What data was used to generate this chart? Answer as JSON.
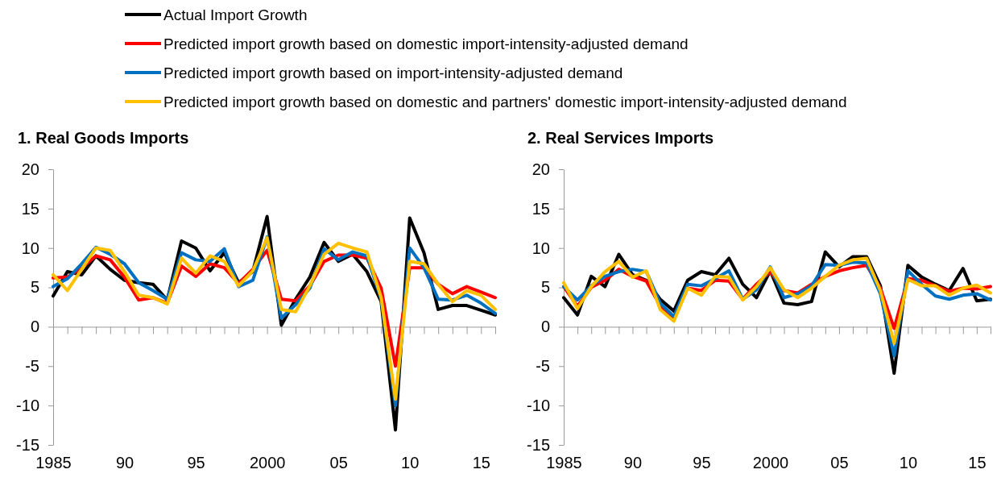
{
  "chart_data": [
    {
      "type": "line",
      "title": "1. Real Goods Imports",
      "x": [
        1985,
        1986,
        1987,
        1988,
        1989,
        1990,
        1991,
        1992,
        1993,
        1994,
        1995,
        1996,
        1997,
        1998,
        1999,
        2000,
        2001,
        2002,
        2003,
        2004,
        2005,
        2006,
        2007,
        2008,
        2009,
        2010,
        2011,
        2012,
        2013,
        2014,
        2015,
        2016
      ],
      "series": [
        {
          "name": "Actual Import Growth",
          "color": "#000000",
          "values": [
            3.9,
            7.0,
            6.6,
            9.0,
            7.3,
            5.9,
            5.6,
            5.4,
            3.4,
            10.9,
            10.0,
            7.1,
            9.4,
            5.6,
            7.0,
            14.0,
            0.2,
            3.5,
            6.3,
            10.7,
            8.3,
            9.2,
            7.0,
            3.2,
            -13.1,
            13.8,
            9.4,
            2.2,
            2.7,
            2.7,
            2.1,
            1.5
          ]
        },
        {
          "name": "Predicted import growth based on domestic import-intensity-adjusted demand",
          "color": "#ff0000",
          "values": [
            6.2,
            6.3,
            7.5,
            9.0,
            8.5,
            6.3,
            3.4,
            3.7,
            3.0,
            7.7,
            6.4,
            8.0,
            7.5,
            5.5,
            7.3,
            9.7,
            3.5,
            3.3,
            5.2,
            8.3,
            9.1,
            9.1,
            8.7,
            4.9,
            -5.0,
            7.5,
            7.5,
            5.4,
            4.2,
            5.1,
            4.4,
            3.7
          ]
        },
        {
          "name": "Predicted import growth based on import-intensity-adjusted demand",
          "color": "#0070c0",
          "values": [
            5.1,
            6.1,
            8.0,
            10.1,
            9.2,
            8.0,
            5.6,
            4.6,
            3.5,
            9.4,
            8.5,
            8.3,
            9.9,
            5.1,
            5.9,
            11.4,
            1.1,
            2.8,
            4.9,
            9.9,
            8.5,
            9.5,
            9.0,
            3.5,
            -10.0,
            10.0,
            7.5,
            3.5,
            3.4,
            4.0,
            3.0,
            1.7
          ]
        },
        {
          "name": "Predicted import growth based on domestic and partners' domestic import-intensity-adjusted demand",
          "color": "#ffc000",
          "values": [
            6.6,
            4.6,
            7.3,
            10.0,
            9.7,
            7.0,
            4.0,
            3.7,
            2.9,
            8.7,
            6.8,
            9.0,
            8.3,
            5.2,
            7.1,
            11.3,
            2.2,
            1.9,
            5.2,
            9.2,
            10.6,
            10.0,
            9.5,
            3.7,
            -9.2,
            8.3,
            8.0,
            5.4,
            3.2,
            4.6,
            4.0,
            2.2
          ]
        }
      ],
      "xlim": [
        1985,
        2016
      ],
      "xticks": [
        {
          "value": 1985,
          "label": "1985"
        },
        {
          "value": 1986,
          "label": null
        },
        {
          "value": 1987,
          "label": null
        },
        {
          "value": 1988,
          "label": null
        },
        {
          "value": 1989,
          "label": null
        },
        {
          "value": 1990,
          "label": "90"
        },
        {
          "value": 1991,
          "label": null
        },
        {
          "value": 1992,
          "label": null
        },
        {
          "value": 1993,
          "label": null
        },
        {
          "value": 1994,
          "label": null
        },
        {
          "value": 1995,
          "label": "95"
        },
        {
          "value": 1996,
          "label": null
        },
        {
          "value": 1997,
          "label": null
        },
        {
          "value": 1998,
          "label": null
        },
        {
          "value": 1999,
          "label": null
        },
        {
          "value": 2000,
          "label": "2000"
        },
        {
          "value": 2001,
          "label": null
        },
        {
          "value": 2002,
          "label": null
        },
        {
          "value": 2003,
          "label": null
        },
        {
          "value": 2004,
          "label": null
        },
        {
          "value": 2005,
          "label": "05"
        },
        {
          "value": 2006,
          "label": null
        },
        {
          "value": 2007,
          "label": null
        },
        {
          "value": 2008,
          "label": null
        },
        {
          "value": 2009,
          "label": null
        },
        {
          "value": 2010,
          "label": "10"
        },
        {
          "value": 2011,
          "label": null
        },
        {
          "value": 2012,
          "label": null
        },
        {
          "value": 2013,
          "label": null
        },
        {
          "value": 2014,
          "label": null
        },
        {
          "value": 2015,
          "label": "15"
        },
        {
          "value": 2016,
          "label": null
        }
      ],
      "ylim": [
        -15,
        20
      ],
      "yticks": [
        -15,
        -10,
        -5,
        0,
        5,
        10,
        15,
        20
      ],
      "legend": "top",
      "marker": "none",
      "line_style": "solid"
    },
    {
      "type": "line",
      "title": "2. Real Services Imports",
      "x": [
        1985,
        1986,
        1987,
        1988,
        1989,
        1990,
        1991,
        1992,
        1993,
        1994,
        1995,
        1996,
        1997,
        1998,
        1999,
        2000,
        2001,
        2002,
        2003,
        2004,
        2005,
        2006,
        2007,
        2008,
        2009,
        2010,
        2011,
        2012,
        2013,
        2014,
        2015,
        2016
      ],
      "series": [
        {
          "color": "#000000",
          "values": [
            3.7,
            1.5,
            6.4,
            5.1,
            9.2,
            6.6,
            5.9,
            3.5,
            2.0,
            5.9,
            7.0,
            6.6,
            8.7,
            5.4,
            3.7,
            7.1,
            3.0,
            2.8,
            3.2,
            9.5,
            7.6,
            8.9,
            8.9,
            5.2,
            -5.9,
            7.8,
            6.3,
            5.4,
            4.6,
            7.4,
            3.3,
            3.5
          ]
        },
        {
          "color": "#ff0000",
          "values": [
            5.1,
            2.6,
            5.0,
            5.9,
            7.3,
            6.4,
            5.8,
            2.7,
            1.1,
            4.9,
            4.6,
            5.9,
            5.8,
            3.5,
            5.4,
            7.0,
            4.6,
            4.3,
            5.4,
            6.4,
            7.1,
            7.5,
            7.8,
            4.9,
            -0.2,
            6.1,
            5.9,
            5.2,
            4.5,
            4.9,
            4.8,
            5.1
          ]
        },
        {
          "color": "#0070c0",
          "values": [
            5.1,
            3.4,
            5.2,
            6.4,
            7.0,
            7.3,
            7.0,
            3.0,
            1.3,
            5.4,
            5.2,
            6.1,
            7.1,
            3.5,
            4.7,
            7.6,
            3.7,
            4.2,
            5.2,
            7.9,
            7.8,
            8.2,
            8.1,
            4.2,
            -3.7,
            7.1,
            5.4,
            3.9,
            3.5,
            4.0,
            4.2,
            3.4
          ]
        },
        {
          "color": "#ffc000",
          "values": [
            5.6,
            2.3,
            5.1,
            7.0,
            8.3,
            6.3,
            7.1,
            2.2,
            0.7,
            4.9,
            4.0,
            6.4,
            6.3,
            3.4,
            5.1,
            7.5,
            4.7,
            3.7,
            4.9,
            6.4,
            7.8,
            8.5,
            8.7,
            4.6,
            -2.1,
            6.0,
            5.2,
            5.2,
            4.0,
            4.9,
            5.3,
            4.3
          ]
        }
      ],
      "xlim": [
        1985,
        2016
      ],
      "xticks": [
        {
          "value": 1985,
          "label": "1985"
        },
        {
          "value": 1986,
          "label": null
        },
        {
          "value": 1987,
          "label": null
        },
        {
          "value": 1988,
          "label": null
        },
        {
          "value": 1989,
          "label": null
        },
        {
          "value": 1990,
          "label": "90"
        },
        {
          "value": 1991,
          "label": null
        },
        {
          "value": 1992,
          "label": null
        },
        {
          "value": 1993,
          "label": null
        },
        {
          "value": 1994,
          "label": null
        },
        {
          "value": 1995,
          "label": "95"
        },
        {
          "value": 1996,
          "label": null
        },
        {
          "value": 1997,
          "label": null
        },
        {
          "value": 1998,
          "label": null
        },
        {
          "value": 1999,
          "label": null
        },
        {
          "value": 2000,
          "label": "2000"
        },
        {
          "value": 2001,
          "label": null
        },
        {
          "value": 2002,
          "label": null
        },
        {
          "value": 2003,
          "label": null
        },
        {
          "value": 2004,
          "label": null
        },
        {
          "value": 2005,
          "label": "05"
        },
        {
          "value": 2006,
          "label": null
        },
        {
          "value": 2007,
          "label": null
        },
        {
          "value": 2008,
          "label": null
        },
        {
          "value": 2009,
          "label": null
        },
        {
          "value": 2010,
          "label": "10"
        },
        {
          "value": 2011,
          "label": null
        },
        {
          "value": 2012,
          "label": null
        },
        {
          "value": 2013,
          "label": null
        },
        {
          "value": 2014,
          "label": null
        },
        {
          "value": 2015,
          "label": "15"
        },
        {
          "value": 2016,
          "label": null
        }
      ],
      "ylim": [
        -15,
        20
      ],
      "yticks": [
        -15,
        -10,
        -5,
        0,
        5,
        10,
        15,
        20
      ],
      "legend": false,
      "marker": "none",
      "line_style": "solid"
    }
  ]
}
